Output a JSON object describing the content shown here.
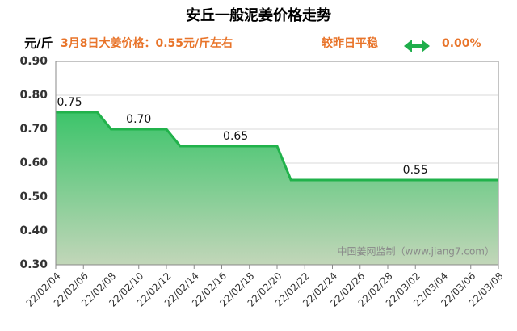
{
  "chart_data": {
    "type": "area",
    "title": "安丘一般泥姜价格走势",
    "unit_label": "元/斤",
    "headline": "3月8日大姜价格：0.55元/斤左右",
    "change_text": "较昨日平稳",
    "change_value": "0.00%",
    "watermark": "中国姜网监制（www.jiang7.com）",
    "categories": [
      "22/02/04",
      null,
      "22/02/06",
      null,
      "22/02/08",
      null,
      "22/02/10",
      null,
      "22/02/12",
      null,
      "22/02/14",
      null,
      "22/02/16",
      null,
      "22/02/18",
      null,
      "22/02/20",
      null,
      "22/02/22",
      null,
      "22/02/24",
      null,
      "22/02/26",
      null,
      "22/02/28",
      null,
      "22/03/02",
      null,
      "22/03/04",
      null,
      "22/03/06",
      null,
      "22/03/08"
    ],
    "series": [
      {
        "color": "#21b24b",
        "values": [
          0.75,
          0.75,
          0.75,
          0.75,
          0.7,
          0.7,
          0.7,
          0.7,
          0.7,
          0.65,
          0.65,
          0.65,
          0.65,
          0.65,
          0.65,
          0.65,
          0.65,
          0.55,
          0.55,
          0.55,
          0.55,
          0.55,
          0.55,
          0.55,
          0.55,
          0.55,
          0.55,
          0.55,
          0.55,
          0.55,
          0.55,
          0.55,
          0.55
        ],
        "value_labels": [
          null,
          "0.75",
          null,
          null,
          null,
          null,
          "0.70",
          null,
          null,
          null,
          null,
          null,
          null,
          "0.65",
          null,
          null,
          null,
          null,
          null,
          null,
          null,
          null,
          null,
          null,
          null,
          null,
          "0.55",
          null,
          null,
          null,
          null,
          null,
          null
        ]
      }
    ],
    "ylim": [
      0.3,
      0.9
    ],
    "yticks": [
      {
        "value": 0.3,
        "label": "0.30"
      },
      {
        "value": 0.4,
        "label": "0.40"
      },
      {
        "value": 0.5,
        "label": "0.50"
      },
      {
        "value": 0.6,
        "label": "0.60"
      },
      {
        "value": 0.7,
        "label": "0.70"
      },
      {
        "value": 0.8,
        "label": "0.80"
      },
      {
        "value": 0.9,
        "label": "0.90"
      }
    ],
    "grid": true
  }
}
